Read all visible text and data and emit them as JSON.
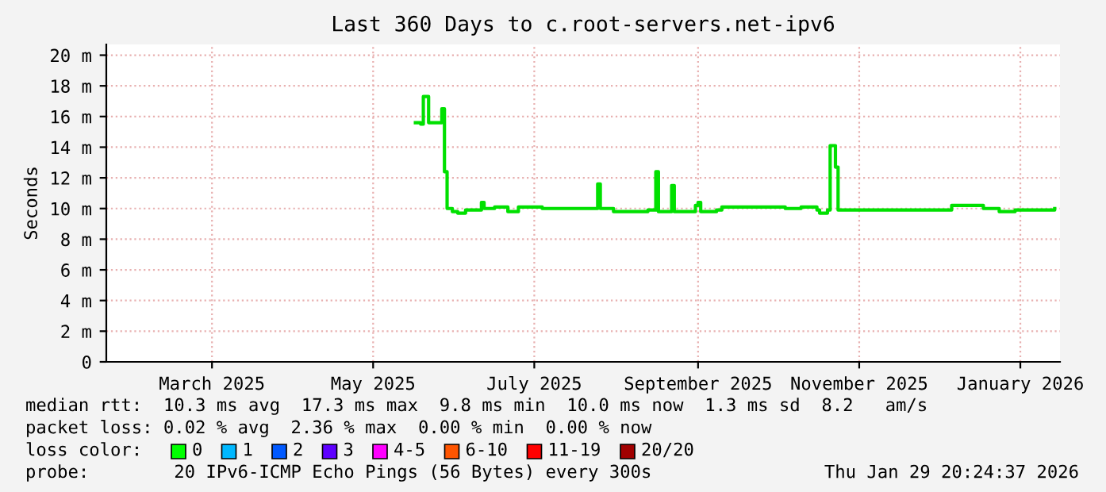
{
  "chart_data": {
    "type": "step",
    "title": "Last 360 Days to c.root-servers.net-ipv6",
    "ylabel": "Seconds",
    "x": [
      "2025-05-31",
      "2025-06-02",
      "2025-06-03",
      "2025-06-05",
      "2025-06-10",
      "2025-06-11",
      "2025-06-12",
      "2025-06-14",
      "2025-06-16",
      "2025-06-19",
      "2025-06-25",
      "2025-06-26",
      "2025-06-30",
      "2025-07-05",
      "2025-07-09",
      "2025-07-18",
      "2025-08-08",
      "2025-08-09",
      "2025-08-14",
      "2025-08-27",
      "2025-08-30",
      "2025-08-31",
      "2025-09-05",
      "2025-09-06",
      "2025-09-14",
      "2025-09-15",
      "2025-09-16",
      "2025-09-22",
      "2025-09-24",
      "2025-10-09",
      "2025-10-18",
      "2025-10-24",
      "2025-10-30",
      "2025-10-31",
      "2025-11-03",
      "2025-11-04",
      "2025-11-06",
      "2025-11-07",
      "2025-12-20",
      "2025-12-31",
      "2026-01-01",
      "2026-01-07",
      "2026-01-13",
      "2026-01-28"
    ],
    "series": [
      {
        "color": "#00e000",
        "values": [
          15.6,
          15.5,
          17.3,
          15.6,
          16.5,
          12.4,
          10.0,
          9.8,
          9.7,
          9.9,
          10.4,
          10.0,
          10.1,
          9.8,
          10.1,
          10.0,
          11.6,
          10.0,
          9.8,
          9.9,
          12.4,
          9.8,
          11.5,
          9.8,
          10.2,
          10.4,
          9.8,
          9.9,
          10.1,
          10.1,
          10.0,
          10.1,
          9.9,
          9.7,
          9.9,
          14.1,
          12.7,
          9.9,
          10.2,
          10.2,
          10.0,
          9.8,
          9.9,
          10.0
        ]
      }
    ],
    "xlim": [
      "2025-02-03",
      "2026-01-30"
    ],
    "xticks": [
      {
        "value": "2025-03-15",
        "label": "March 2025"
      },
      {
        "value": "2025-05-15",
        "label": "May 2025"
      },
      {
        "value": "2025-07-15",
        "label": "July 2025"
      },
      {
        "value": "2025-09-15",
        "label": "September 2025"
      },
      {
        "value": "2025-11-15",
        "label": "November 2025"
      },
      {
        "value": "2026-01-15",
        "label": "January 2026"
      }
    ],
    "ylim": [
      0,
      20.7
    ],
    "yticks": [
      {
        "value": 0,
        "label": "0"
      },
      {
        "value": 2,
        "label": "2 m"
      },
      {
        "value": 4,
        "label": "4 m"
      },
      {
        "value": 6,
        "label": "6 m"
      },
      {
        "value": 8,
        "label": "8 m"
      },
      {
        "value": 10,
        "label": "10 m"
      },
      {
        "value": 12,
        "label": "12 m"
      },
      {
        "value": 14,
        "label": "14 m"
      },
      {
        "value": 16,
        "label": "16 m"
      },
      {
        "value": 18,
        "label": "18 m"
      },
      {
        "value": 20,
        "label": "20 m"
      }
    ],
    "grid": true,
    "legend": false,
    "annotations": [
      "median rtt:  10.3 ms avg  17.3 ms max  9.8 ms min  10.0 ms now  1.3 ms sd  8.2   am/s",
      "packet loss: 0.02 % avg  2.36 % max  0.00 % min  0.00 % now",
      "loss color:",
      "0",
      "1",
      "2",
      "3",
      "4-5",
      "6-10",
      "11-19",
      "20/20",
      "probe:        20 IPv6-ICMP Echo Pings (56 Bytes) every 300s",
      "Thu Jan 29 20:24:37 2026"
    ]
  }
}
